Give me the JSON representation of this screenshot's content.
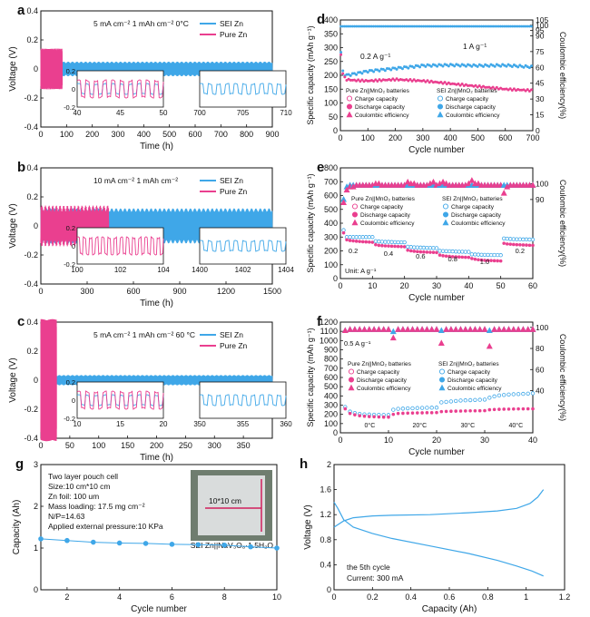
{
  "colors": {
    "sei": "#3fa7e8",
    "pure": "#ea3f8f",
    "axis": "#111111",
    "grey": "#cfcfcf"
  },
  "panels": [
    {
      "letter": "a",
      "xlabel": "Time (h)",
      "ylabel": "Voltage (V)",
      "xlim": [
        0,
        900
      ],
      "ylim": [
        -0.4,
        0.4
      ],
      "xticks": [
        0,
        100,
        200,
        300,
        400,
        500,
        600,
        700,
        800,
        900
      ],
      "yticks": [
        -0.4,
        -0.2,
        0.0,
        0.2,
        0.4
      ],
      "annotation": "5 mA cm⁻²  1 mAh cm⁻²     0°C",
      "pure_end": 83,
      "sei_amp": 0.05,
      "pure_amp": 0.14,
      "legend": [
        "SEI Zn",
        "Pure Zn"
      ],
      "insets": [
        {
          "xlim": [
            40,
            50
          ],
          "ylim": [
            -0.2,
            0.2
          ],
          "xticks": [
            40,
            45,
            50
          ],
          "yticks": [
            -0.2,
            0.0,
            0.2
          ],
          "series": "mixed",
          "cycles": 10
        },
        {
          "xlim": [
            700,
            710
          ],
          "ylim": [
            -0.2,
            0.2
          ],
          "xticks": [
            700,
            705,
            710
          ],
          "yticks": [],
          "series": "sei",
          "cycles": 10
        }
      ]
    },
    {
      "letter": "b",
      "xlabel": "Time (h)",
      "ylabel": "Voltage (V)",
      "xlim": [
        0,
        1500
      ],
      "ylim": [
        -0.4,
        0.4
      ],
      "xticks": [
        0,
        300,
        600,
        900,
        1200,
        1500
      ],
      "yticks": [
        -0.4,
        -0.2,
        0.0,
        0.2,
        0.4
      ],
      "annotation": "10 mA cm⁻²  1 mAh cm⁻²",
      "pure_end": 440,
      "sei_amp": 0.12,
      "pure_amp": 0.14,
      "legend": [
        "SEI Zn",
        "Pure Zn"
      ],
      "insets": [
        {
          "xlim": [
            100,
            104
          ],
          "ylim": [
            -0.2,
            0.2
          ],
          "xticks": [
            100,
            102,
            104
          ],
          "yticks": [
            -0.2,
            0.0,
            0.2
          ],
          "series": "pure",
          "cycles": 14
        },
        {
          "xlim": [
            1400,
            1404
          ],
          "ylim": [
            -0.2,
            0.2
          ],
          "xticks": [
            1400,
            1402,
            1404
          ],
          "yticks": [],
          "series": "sei",
          "cycles": 10
        }
      ]
    },
    {
      "letter": "c",
      "xlabel": "Time (h)",
      "ylabel": "Voltage (V)",
      "xlim": [
        0,
        400
      ],
      "ylim": [
        -0.4,
        0.4
      ],
      "xticks": [
        0,
        50,
        100,
        150,
        200,
        250,
        300,
        350
      ],
      "yticks": [
        -0.4,
        -0.2,
        0.0,
        0.2,
        0.4
      ],
      "annotation": "5 mA cm⁻²  1 mAh cm⁻²     60 °C",
      "pure_end": 27,
      "sei_amp": 0.035,
      "pure_amp": 0.42,
      "legend": [
        "SEI Zn",
        "Pure Zn"
      ],
      "insets": [
        {
          "xlim": [
            10,
            20
          ],
          "ylim": [
            -0.2,
            0.2
          ],
          "xticks": [
            10,
            15,
            20
          ],
          "yticks": [
            -0.2,
            0.0,
            0.2
          ],
          "series": "mixed",
          "cycles": 10
        },
        {
          "xlim": [
            350,
            360
          ],
          "ylim": [
            -0.2,
            0.2
          ],
          "xticks": [
            350,
            355,
            360
          ],
          "yticks": [],
          "series": "sei",
          "cycles": 10
        }
      ]
    }
  ],
  "panel_d": {
    "letter": "d",
    "xlabel": "Cycle number",
    "ylabel": "Specific capacity (mAh g⁻¹)",
    "y2label": "Coulombic efficiency(%)",
    "xlim": [
      0,
      700
    ],
    "ylim": [
      0,
      400
    ],
    "y2lim": [
      0,
      105
    ],
    "xticks": [
      0,
      100,
      200,
      300,
      400,
      500,
      600,
      700
    ],
    "yticks": [
      0,
      50,
      100,
      150,
      200,
      250,
      300,
      350,
      400
    ],
    "y2ticks": [
      0,
      15,
      30,
      45,
      60,
      75,
      90,
      95,
      100,
      105
    ],
    "rate_low": "0.2 A g⁻¹",
    "rate_high": "1 A g⁻¹",
    "legend_title_pure": "Pure Zn||MnO₂ batteries",
    "legend_title_sei": "SEI Zn||MnO₂ batteries",
    "legend_items": [
      "Charge capacity",
      "Discharge capacity",
      "Coulombic efficiency"
    ],
    "sei_capacity": {
      "x": [
        0,
        10,
        20,
        50,
        100,
        200,
        300,
        400,
        500,
        600,
        700
      ],
      "y": [
        300,
        205,
        200,
        205,
        215,
        225,
        235,
        237,
        235,
        236,
        230
      ]
    },
    "pure_capacity": {
      "x": [
        0,
        10,
        20,
        50,
        100,
        200,
        300,
        400,
        500,
        600,
        700
      ],
      "y": [
        290,
        200,
        185,
        182,
        180,
        185,
        180,
        170,
        160,
        150,
        145
      ]
    },
    "ce": {
      "x": [
        0,
        700
      ],
      "y": [
        99,
        99
      ]
    }
  },
  "panel_e": {
    "letter": "e",
    "xlabel": "Cycle number",
    "ylabel": "Specific capacity (mAh g⁻¹)",
    "y2label": "Coulombic efficiency(%)",
    "xlim": [
      0,
      60
    ],
    "ylim": [
      0,
      800
    ],
    "y2lim": [
      40,
      110
    ],
    "xticks": [
      0,
      10,
      20,
      30,
      40,
      50,
      60
    ],
    "yticks": [
      0,
      100,
      200,
      300,
      400,
      500,
      600,
      700,
      800
    ],
    "y2ticks": [
      90,
      100
    ],
    "unit_label": "Unit: A g⁻¹",
    "rates": [
      "0.2",
      "0.4",
      "0.6",
      "0.8",
      "1.0",
      "0.2"
    ],
    "legend_title_pure": "Pure Zn||MnO₂ batteries",
    "legend_title_sei": "SEI Zn||MnO₂ batteries",
    "legend_items": [
      "Charge capacity",
      "Discharge capacity",
      "Coulombic efficiency"
    ],
    "sei_capacity": [
      350,
      300,
      300,
      300,
      300,
      300,
      300,
      300,
      300,
      300,
      270,
      268,
      266,
      265,
      265,
      264,
      263,
      262,
      262,
      262,
      230,
      228,
      226,
      225,
      224,
      223,
      222,
      222,
      221,
      220,
      200,
      199,
      198,
      197,
      196,
      195,
      194,
      194,
      193,
      193,
      175,
      174,
      173,
      172,
      171,
      171,
      170,
      170,
      170,
      169,
      290,
      288,
      286,
      285,
      284,
      284,
      283,
      283,
      282,
      282
    ],
    "pure_capacity": [
      330,
      280,
      275,
      272,
      270,
      268,
      266,
      265,
      264,
      262,
      245,
      240,
      238,
      236,
      235,
      234,
      233,
      232,
      231,
      230,
      205,
      200,
      197,
      195,
      193,
      192,
      191,
      190,
      189,
      188,
      170,
      165,
      162,
      160,
      158,
      157,
      156,
      155,
      154,
      153,
      145,
      140,
      136,
      134,
      132,
      131,
      130,
      129,
      128,
      127,
      255,
      250,
      248,
      246,
      245,
      244,
      243,
      242,
      241,
      240
    ],
    "ce_sei": [
      90,
      98,
      99,
      99,
      99,
      99,
      99,
      99,
      99,
      99,
      99,
      99,
      99,
      99,
      99,
      99,
      99,
      99,
      99,
      99,
      99,
      99,
      99,
      99,
      99,
      99,
      99,
      99,
      99,
      99,
      99,
      99,
      99,
      99,
      99,
      99,
      99,
      99,
      99,
      99,
      99,
      99,
      99,
      99,
      99,
      99,
      99,
      99,
      99,
      99,
      99,
      99,
      99,
      99,
      99,
      99,
      99,
      99,
      99,
      99
    ],
    "ce_pure": [
      88,
      96,
      98,
      98,
      99,
      99,
      99,
      99,
      99,
      99,
      100,
      100,
      99,
      99,
      99,
      99,
      99,
      99,
      99,
      99,
      101,
      100,
      100,
      99,
      99,
      99,
      99,
      100,
      101,
      99,
      100,
      101,
      100,
      99,
      99,
      99,
      99,
      99,
      99,
      100,
      102,
      100,
      100,
      99,
      99,
      99,
      99,
      99,
      99,
      99,
      94,
      98,
      99,
      99,
      99,
      99,
      99,
      99,
      99,
      99
    ]
  },
  "panel_f": {
    "letter": "f",
    "xlabel": "Cycle number",
    "ylabel": "Specific capacity (mAh g⁻¹)",
    "y2label": "Coulombic efficiency(%)",
    "xlim": [
      0,
      40
    ],
    "ylim": [
      0,
      1200
    ],
    "y2lim": [
      0,
      105
    ],
    "xticks": [
      0,
      10,
      20,
      30,
      40
    ],
    "yticks": [
      0,
      100,
      200,
      300,
      400,
      500,
      600,
      700,
      800,
      900,
      1000,
      1100,
      1200
    ],
    "y2ticks": [
      40,
      60,
      80,
      100
    ],
    "rate_label": "0.5 A g⁻¹",
    "temps": [
      "0°C",
      "20°C",
      "30°C",
      "40°C"
    ],
    "legend_title_pure": "Pure Zn||MnO₂ batteries",
    "legend_title_sei": "SEI Zn||MnO₂ batteries",
    "legend_items": [
      "Charge capacity",
      "Discharge capacity",
      "Coulombic efficiency"
    ],
    "sei_capacity": [
      280,
      230,
      215,
      205,
      200,
      198,
      196,
      195,
      194,
      193,
      250,
      260,
      262,
      265,
      266,
      268,
      270,
      271,
      272,
      273,
      330,
      335,
      340,
      345,
      350,
      352,
      354,
      356,
      358,
      360,
      380,
      395,
      405,
      410,
      415,
      418,
      420,
      422,
      425,
      428
    ],
    "pure_capacity": [
      260,
      210,
      195,
      185,
      180,
      176,
      174,
      172,
      170,
      170,
      200,
      210,
      212,
      214,
      215,
      216,
      217,
      218,
      218,
      219,
      230,
      232,
      234,
      235,
      236,
      237,
      238,
      238,
      239,
      240,
      250,
      253,
      255,
      256,
      257,
      258,
      259,
      259,
      260,
      260
    ],
    "ce_sei": [
      97,
      98,
      98,
      98,
      98,
      98,
      98,
      98,
      98,
      98,
      96,
      98,
      98,
      98,
      98,
      98,
      98,
      98,
      98,
      98,
      97,
      98,
      98,
      98,
      98,
      98,
      98,
      98,
      98,
      98,
      97,
      98,
      98,
      98,
      98,
      98,
      98,
      98,
      98,
      98
    ],
    "ce_pure": [
      97,
      98,
      98,
      98,
      98,
      98,
      98,
      98,
      98,
      98,
      90,
      98,
      98,
      98,
      98,
      98,
      98,
      98,
      98,
      98,
      85,
      98,
      98,
      98,
      98,
      98,
      98,
      98,
      98,
      98,
      82,
      98,
      98,
      98,
      98,
      98,
      98,
      98,
      98,
      98
    ]
  },
  "panel_g": {
    "letter": "g",
    "xlabel": "Cycle number",
    "ylabel": "Capacity (Ah)",
    "xlim": [
      1,
      10
    ],
    "ylim": [
      0,
      3
    ],
    "xticks": [
      2,
      4,
      6,
      8,
      10
    ],
    "yticks": [
      0,
      1,
      2,
      3
    ],
    "info": [
      "Two layer pouch cell",
      "Size:10 cm*10 cm",
      "Zn foil: 100 um",
      "Mass loading: 17.5 mg cm⁻²",
      "N/P=14.63",
      "Applied external pressure:10 KPa"
    ],
    "photo_label": "10*10 cm",
    "cell_label": "SEI Zn||NaV₃O₈·1.5H₂O",
    "capacity": {
      "x": [
        1,
        2,
        3,
        4,
        5,
        6,
        7,
        8,
        9,
        10
      ],
      "y": [
        1.22,
        1.18,
        1.14,
        1.12,
        1.11,
        1.09,
        1.08,
        1.07,
        1.03,
        1.0
      ]
    }
  },
  "panel_h": {
    "letter": "h",
    "xlabel": "Capacity (Ah)",
    "ylabel": "Voltage (V)",
    "xlim": [
      0,
      1.2
    ],
    "ylim": [
      0,
      2.0
    ],
    "xticks": [
      0.0,
      0.2,
      0.4,
      0.6,
      0.8,
      1.0,
      1.2
    ],
    "yticks": [
      0.0,
      0.4,
      0.8,
      1.2,
      1.6,
      2.0
    ],
    "note_cycle": "the 5th cycle",
    "note_current": "Current: 300 mA",
    "charge": {
      "x": [
        0,
        0.05,
        0.1,
        0.2,
        0.3,
        0.5,
        0.7,
        0.85,
        0.95,
        1.02,
        1.06,
        1.09
      ],
      "y": [
        1.0,
        1.1,
        1.15,
        1.18,
        1.19,
        1.2,
        1.23,
        1.26,
        1.3,
        1.38,
        1.48,
        1.6
      ]
    },
    "discharge": {
      "x": [
        0,
        0.02,
        0.05,
        0.1,
        0.2,
        0.3,
        0.5,
        0.7,
        0.85,
        0.95,
        1.03,
        1.09
      ],
      "y": [
        1.4,
        1.3,
        1.12,
        1.0,
        0.9,
        0.82,
        0.7,
        0.58,
        0.47,
        0.38,
        0.3,
        0.22
      ]
    }
  }
}
